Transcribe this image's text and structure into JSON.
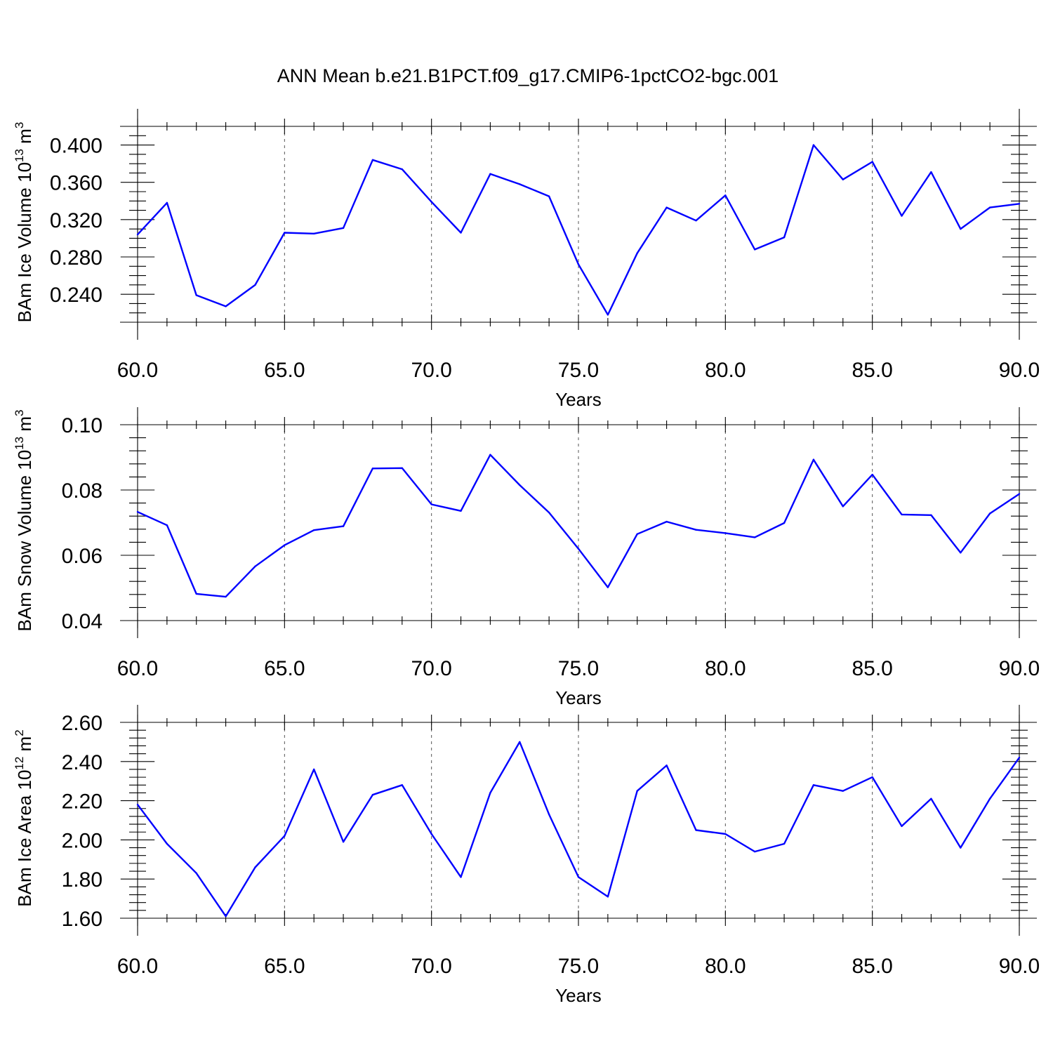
{
  "title": "ANN Mean b.e21.B1PCT.f09_g17.CMIP6-1pctCO2-bgc.001",
  "colors": {
    "series": "#0000ff",
    "axes": "#000000",
    "grid": "#555555",
    "background": "#ffffff"
  },
  "chart_data": [
    {
      "type": "line",
      "ylabel": {
        "main": "BAm Ice Volume 10",
        "exp": "13",
        "unit": " m",
        "unit_exp": "3"
      },
      "xlabel": "Years",
      "xlim": [
        60,
        90
      ],
      "ylim": [
        0.21,
        0.42
      ],
      "xticks": [
        60,
        65,
        70,
        75,
        80,
        85,
        90
      ],
      "xtick_labels": [
        "60.0",
        "65.0",
        "70.0",
        "75.0",
        "80.0",
        "85.0",
        "90.0"
      ],
      "yticks": [
        0.24,
        0.28,
        0.32,
        0.36,
        0.4
      ],
      "ytick_labels": [
        "0.240",
        "0.280",
        "0.320",
        "0.360",
        "0.400"
      ],
      "y_minor_step": 0.01,
      "grid": "vertical dashed at major x ticks",
      "x": [
        60,
        61,
        62,
        63,
        64,
        65,
        66,
        67,
        68,
        69,
        70,
        71,
        72,
        73,
        74,
        75,
        76,
        77,
        78,
        79,
        80,
        81,
        82,
        83,
        84,
        85,
        86,
        87,
        88,
        89,
        90
      ],
      "values": [
        0.304,
        0.338,
        0.239,
        0.227,
        0.25,
        0.306,
        0.305,
        0.311,
        0.384,
        0.374,
        0.339,
        0.306,
        0.369,
        0.358,
        0.345,
        0.272,
        0.218,
        0.284,
        0.333,
        0.319,
        0.346,
        0.288,
        0.301,
        0.4,
        0.363,
        0.382,
        0.324,
        0.371,
        0.31,
        0.333,
        0.337
      ]
    },
    {
      "type": "line",
      "ylabel": {
        "main": "BAm Snow Volume 10",
        "exp": "13",
        "unit": " m",
        "unit_exp": "3"
      },
      "xlabel": "Years",
      "xlim": [
        60,
        90
      ],
      "ylim": [
        0.04,
        0.1
      ],
      "xticks": [
        60,
        65,
        70,
        75,
        80,
        85,
        90
      ],
      "xtick_labels": [
        "60.0",
        "65.0",
        "70.0",
        "75.0",
        "80.0",
        "85.0",
        "90.0"
      ],
      "yticks": [
        0.04,
        0.06,
        0.08,
        0.1
      ],
      "ytick_labels": [
        "0.04",
        "0.06",
        "0.08",
        "0.10"
      ],
      "y_minor_step": 0.004,
      "grid": "vertical dashed at major x ticks",
      "x": [
        60,
        61,
        62,
        63,
        64,
        65,
        66,
        67,
        68,
        69,
        70,
        71,
        72,
        73,
        74,
        75,
        76,
        77,
        78,
        79,
        80,
        81,
        82,
        83,
        84,
        85,
        86,
        87,
        88,
        89,
        90
      ],
      "values": [
        0.0733,
        0.0692,
        0.0482,
        0.0473,
        0.0566,
        0.0631,
        0.0677,
        0.0689,
        0.0866,
        0.0867,
        0.0756,
        0.0736,
        0.0908,
        0.0815,
        0.0731,
        0.062,
        0.0502,
        0.0665,
        0.0703,
        0.0678,
        0.0668,
        0.0655,
        0.0699,
        0.0893,
        0.075,
        0.0847,
        0.0725,
        0.0723,
        0.0608,
        0.0728,
        0.0788
      ]
    },
    {
      "type": "line",
      "ylabel": {
        "main": "BAm Ice Area 10",
        "exp": "12",
        "unit": " m",
        "unit_exp": "2"
      },
      "xlabel": "Years",
      "xlim": [
        60,
        90
      ],
      "ylim": [
        1.6,
        2.6
      ],
      "xticks": [
        60,
        65,
        70,
        75,
        80,
        85,
        90
      ],
      "xtick_labels": [
        "60.0",
        "65.0",
        "70.0",
        "75.0",
        "80.0",
        "85.0",
        "90.0"
      ],
      "yticks": [
        1.6,
        1.8,
        2.0,
        2.2,
        2.4,
        2.6
      ],
      "ytick_labels": [
        "1.60",
        "1.80",
        "2.00",
        "2.20",
        "2.40",
        "2.60"
      ],
      "y_minor_step": 0.04,
      "grid": "vertical dashed at major x ticks",
      "x": [
        60,
        61,
        62,
        63,
        64,
        65,
        66,
        67,
        68,
        69,
        70,
        71,
        72,
        73,
        74,
        75,
        76,
        77,
        78,
        79,
        80,
        81,
        82,
        83,
        84,
        85,
        86,
        87,
        88,
        89,
        90
      ],
      "values": [
        2.18,
        1.98,
        1.83,
        1.61,
        1.86,
        2.02,
        2.36,
        1.99,
        2.23,
        2.28,
        2.03,
        1.81,
        2.24,
        2.5,
        2.13,
        1.81,
        1.71,
        2.25,
        2.38,
        2.05,
        2.03,
        1.94,
        1.98,
        2.28,
        2.25,
        2.32,
        2.07,
        2.21,
        1.96,
        2.21,
        2.42
      ]
    }
  ]
}
